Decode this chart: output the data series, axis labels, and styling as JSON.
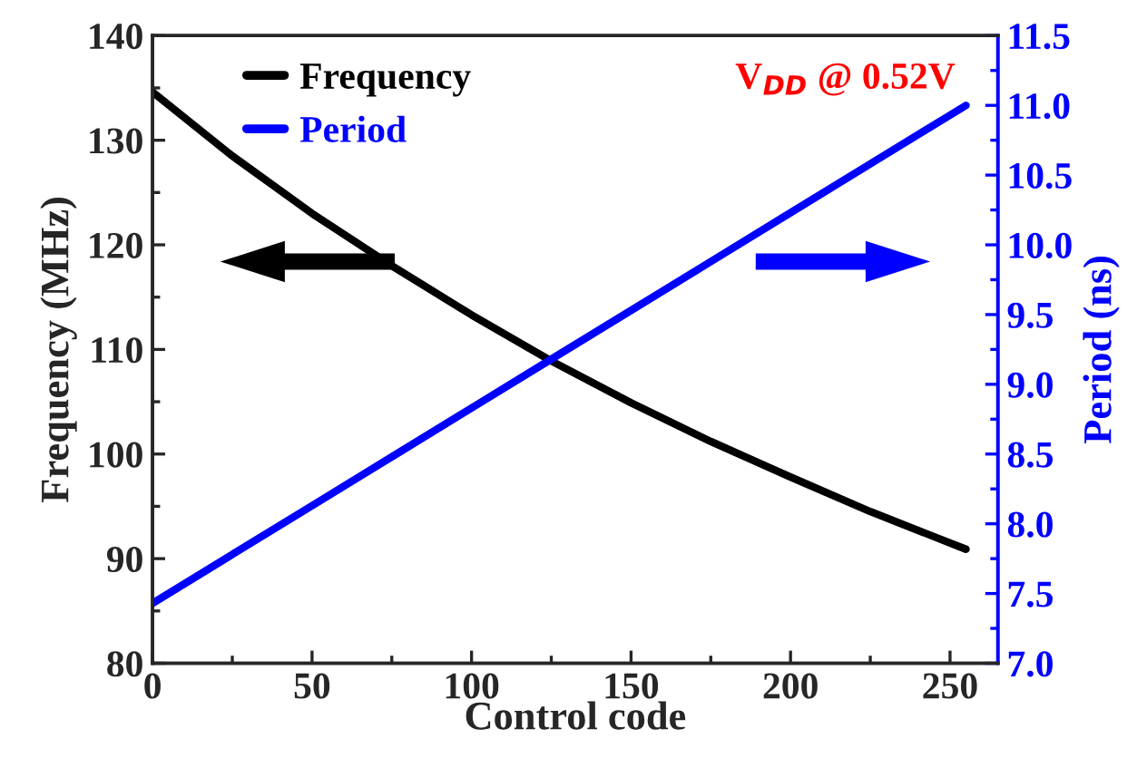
{
  "chart_data": {
    "type": "line",
    "xlabel": "Control code",
    "ylabel": "Frequency (MHz)",
    "y2label": "Period (ns)",
    "annotations": [
      "V$_{DD}$ @ 0.52V"
    ],
    "legend": "top left",
    "grid": false,
    "line_style": "solid",
    "marker": "none",
    "xlim": [
      0,
      265
    ],
    "xticks": [
      0,
      50,
      100,
      150,
      200,
      250
    ],
    "ylim": [
      80,
      140
    ],
    "yticks": [
      80,
      90,
      100,
      110,
      120,
      130,
      140
    ],
    "y2lim": [
      7.0,
      11.5
    ],
    "y2ticks": [
      {
        "value": 7,
        "label": "7.0"
      },
      7.5,
      {
        "value": 8,
        "label": "8.0"
      },
      8.5,
      {
        "value": 9,
        "label": "9.0"
      },
      9.5,
      {
        "value": 10,
        "label": "10.0"
      },
      10.5,
      {
        "value": 11,
        "label": "11.0"
      },
      11.5
    ],
    "series": [
      {
        "name": "Frequency",
        "color": "#000000",
        "x": [
          0,
          25,
          50,
          75,
          100,
          125,
          150,
          175,
          200,
          225,
          250,
          255
        ],
        "values": [
          134.6,
          128.5,
          123.0,
          118.0,
          113.3,
          108.9,
          104.9,
          101.2,
          97.8,
          94.5,
          91.5,
          90.9
        ]
      },
      {
        "name": "Period",
        "color": "#0000ff",
        "axis": "y2",
        "x": [
          0,
          25,
          50,
          75,
          100,
          125,
          150,
          175,
          200,
          225,
          250,
          255
        ],
        "values": [
          7.43,
          7.78,
          8.13,
          8.48,
          8.83,
          9.18,
          9.53,
          9.88,
          10.23,
          10.58,
          10.93,
          11.0
        ]
      }
    ]
  }
}
